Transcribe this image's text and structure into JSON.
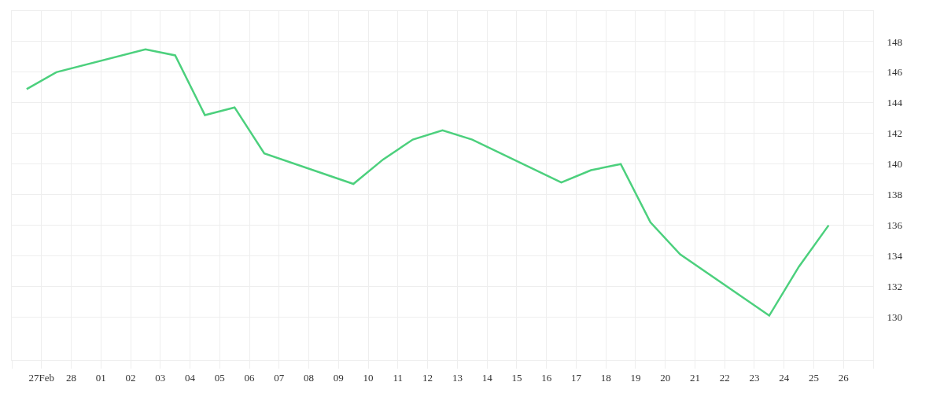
{
  "chart_data": {
    "type": "line",
    "x": [
      "--02-26T12:00",
      "--02-27T12:00",
      "--03-02T12:00",
      "--03-03T12:00",
      "--03-04T12:00",
      "--03-05T12:00",
      "--03-06T12:00",
      "--03-09T12:00",
      "--03-10T12:00",
      "--03-11T12:00",
      "--03-12T12:00",
      "--03-13T12:00",
      "--03-16T12:00",
      "--03-17T12:00",
      "--03-18T12:00",
      "--03-19T12:00",
      "--03-20T12:00",
      "--03-23T12:00",
      "--03-24T12:00",
      "--03-25T12:00"
    ],
    "series": [
      {
        "color": "#4cd07d",
        "values": [
          144.9,
          146.0,
          147.5,
          147.1,
          143.2,
          143.7,
          140.7,
          138.7,
          140.3,
          141.6,
          142.2,
          141.6,
          138.8,
          139.6,
          140.0,
          136.2,
          134.1,
          130.1,
          133.3,
          136.0
        ]
      }
    ],
    "xlim": [
      "--02-26",
      "--03-27"
    ],
    "xticks": [
      {
        "value": "--02-26",
        "label": null
      },
      {
        "value": "--02-27",
        "label": "27Feb"
      },
      {
        "value": "--02-28",
        "label": "28"
      },
      {
        "value": "--03-01",
        "label": "01"
      },
      {
        "value": "--03-02",
        "label": "02"
      },
      {
        "value": "--03-03",
        "label": "03"
      },
      {
        "value": "--03-04",
        "label": "04"
      },
      {
        "value": "--03-05",
        "label": "05"
      },
      {
        "value": "--03-06",
        "label": "06"
      },
      {
        "value": "--03-07",
        "label": "07"
      },
      {
        "value": "--03-08",
        "label": "08"
      },
      {
        "value": "--03-09",
        "label": "09"
      },
      {
        "value": "--03-10",
        "label": "10"
      },
      {
        "value": "--03-11",
        "label": "11"
      },
      {
        "value": "--03-12",
        "label": "12"
      },
      {
        "value": "--03-13",
        "label": "13"
      },
      {
        "value": "--03-14",
        "label": "14"
      },
      {
        "value": "--03-15",
        "label": "15"
      },
      {
        "value": "--03-16",
        "label": "16"
      },
      {
        "value": "--03-17",
        "label": "17"
      },
      {
        "value": "--03-18",
        "label": "18"
      },
      {
        "value": "--03-19",
        "label": "19"
      },
      {
        "value": "--03-20",
        "label": "20"
      },
      {
        "value": "--03-21",
        "label": "21"
      },
      {
        "value": "--03-22",
        "label": "22"
      },
      {
        "value": "--03-23",
        "label": "23"
      },
      {
        "value": "--03-24",
        "label": "24"
      },
      {
        "value": "--03-25",
        "label": "25"
      },
      {
        "value": "--03-26",
        "label": "26"
      },
      {
        "value": "--03-27",
        "label": null
      }
    ],
    "ylim": [
      127.2,
      150
    ],
    "yticks": [
      130,
      132,
      134,
      136,
      138,
      140,
      142,
      144,
      146,
      148
    ],
    "grid": true
  }
}
